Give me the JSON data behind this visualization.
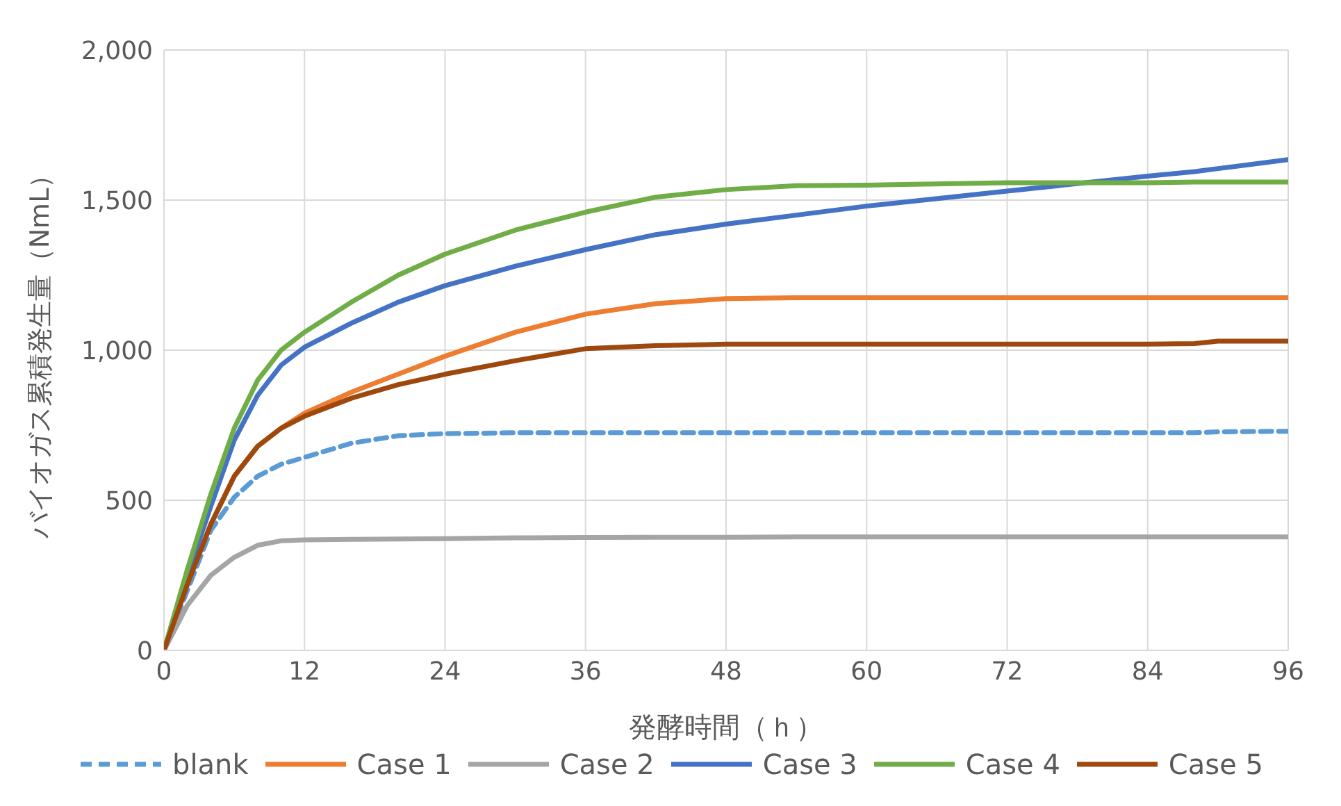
{
  "chart_data": {
    "type": "line",
    "xlabel": "発酵時間（ｈ）",
    "ylabel": "バイオガス累積発生量（NmL）",
    "x": [
      0,
      2,
      4,
      6,
      8,
      10,
      12,
      16,
      20,
      24,
      30,
      36,
      42,
      48,
      54,
      60,
      72,
      84,
      88,
      90,
      96
    ],
    "xlim": [
      0,
      96
    ],
    "xticks": [
      0,
      12,
      24,
      36,
      48,
      60,
      72,
      84,
      96
    ],
    "ylim": [
      0,
      2000
    ],
    "yticks": [
      0,
      500,
      {
        "value": 1000,
        "label": "1,000"
      },
      {
        "value": 1500,
        "label": "1,500"
      },
      {
        "value": 2000,
        "label": "2,000"
      }
    ],
    "grid": true,
    "legend": "bottom",
    "marker": "none",
    "line_style": "solid",
    "series": [
      {
        "name": "blank",
        "color": "#5b9bd5",
        "line_style": "dashed",
        "values": [
          0,
          200,
          400,
          510,
          580,
          620,
          643,
          690,
          715,
          722,
          725,
          725,
          725,
          725,
          725,
          725,
          725,
          725,
          725,
          728,
          730
        ]
      },
      {
        "name": "Case 1",
        "color": "#ed7d31",
        "values": [
          0,
          220,
          420,
          580,
          680,
          740,
          790,
          860,
          920,
          980,
          1060,
          1120,
          1155,
          1172,
          1175,
          1175,
          1175,
          1175,
          1175,
          1175,
          1175
        ]
      },
      {
        "name": "Case 2",
        "color": "#a5a5a5",
        "values": [
          0,
          150,
          250,
          310,
          350,
          365,
          368,
          370,
          371,
          372,
          375,
          376,
          377,
          377,
          378,
          378,
          378,
          378,
          378,
          378,
          378
        ]
      },
      {
        "name": "Case 3",
        "color": "#4472c4",
        "values": [
          0,
          250,
          480,
          700,
          850,
          950,
          1010,
          1090,
          1160,
          1215,
          1280,
          1335,
          1385,
          1420,
          1450,
          1480,
          1530,
          1580,
          1595,
          1605,
          1635
        ]
      },
      {
        "name": "Case 4",
        "color": "#70ad47",
        "values": [
          0,
          270,
          520,
          740,
          900,
          1000,
          1060,
          1160,
          1250,
          1320,
          1400,
          1460,
          1510,
          1535,
          1548,
          1550,
          1558,
          1558,
          1560,
          1560,
          1560
        ]
      },
      {
        "name": "Case 5",
        "color": "#9e480e",
        "values": [
          0,
          220,
          420,
          580,
          680,
          740,
          780,
          840,
          885,
          920,
          965,
          1005,
          1015,
          1020,
          1020,
          1020,
          1020,
          1020,
          1022,
          1030,
          1030
        ]
      }
    ]
  }
}
